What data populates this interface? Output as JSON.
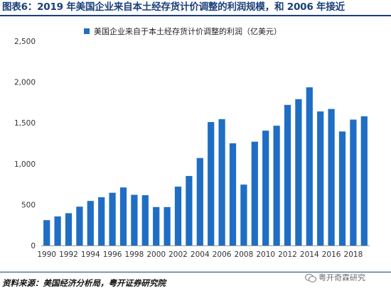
{
  "header": {
    "title": "图表6：2019 年美国企业来自本土经存货计价调整的利润规模，和 2006 年接近"
  },
  "footer": {
    "source": "资料来源：美国经济分析局，粤开证券研究院",
    "watermark": "粤开奇霖研究"
  },
  "chart_data": {
    "type": "bar",
    "title": "图表6：2019 年美国企业来自本土经存货计价调整的利润规模，和 2006 年接近",
    "xlabel": "",
    "ylabel": "",
    "ylim": [
      0,
      2500
    ],
    "yticks": [
      0,
      500,
      1000,
      1500,
      2000,
      2500
    ],
    "ytick_labels": [
      "0",
      "500",
      "1,000",
      "1,500",
      "2,000",
      "2,500"
    ],
    "legend_position": "top",
    "grid": false,
    "bar_color": "#1f6ec4",
    "categories": [
      "1990",
      "1991",
      "1992",
      "1993",
      "1994",
      "1995",
      "1996",
      "1997",
      "1998",
      "1999",
      "2000",
      "2001",
      "2002",
      "2003",
      "2004",
      "2005",
      "2006",
      "2007",
      "2008",
      "2009",
      "2010",
      "2011",
      "2012",
      "2013",
      "2014",
      "2015",
      "2016",
      "2017",
      "2018",
      "2019"
    ],
    "xtick_labels": [
      "1990",
      "",
      "1992",
      "",
      "1994",
      "",
      "1996",
      "",
      "1998",
      "",
      "2000",
      "",
      "2002",
      "",
      "2004",
      "",
      "2006",
      "",
      "2008",
      "",
      "2010",
      "",
      "2012",
      "",
      "2014",
      "",
      "2016",
      "",
      "2018",
      ""
    ],
    "series": [
      {
        "name": "美国企业来自于本土经存货计价调整的利润（亿美元）",
        "values": [
          310,
          355,
          395,
          475,
          545,
          590,
          645,
          710,
          620,
          615,
          470,
          470,
          720,
          850,
          1070,
          1510,
          1545,
          1250,
          745,
          1270,
          1405,
          1465,
          1720,
          1790,
          1935,
          1640,
          1670,
          1395,
          1540,
          1580
        ]
      }
    ]
  }
}
